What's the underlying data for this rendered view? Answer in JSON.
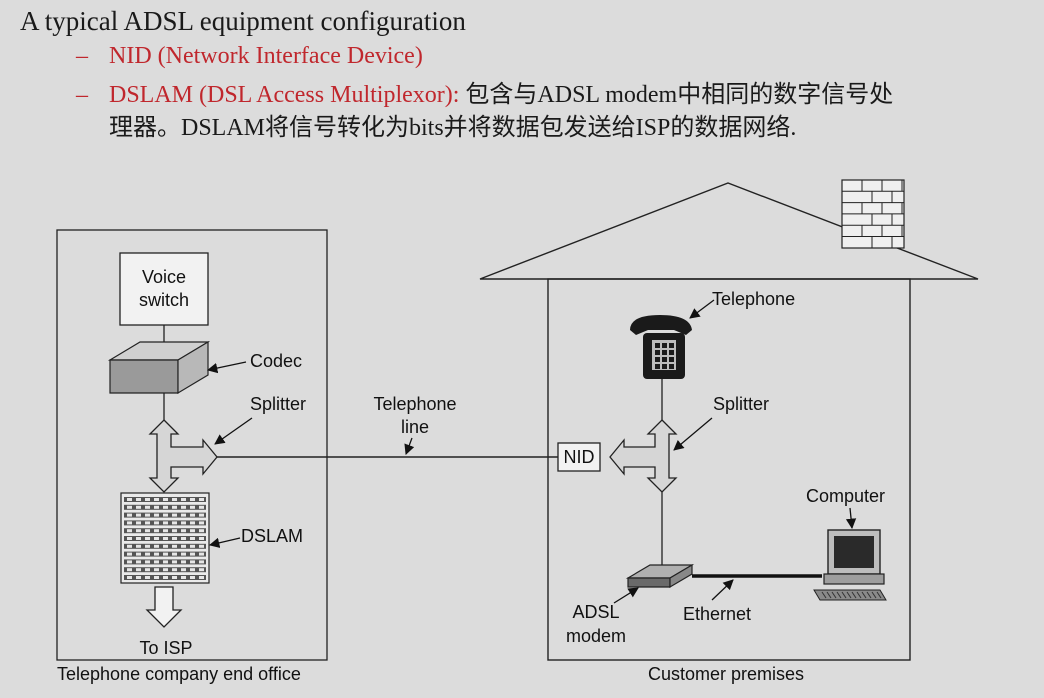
{
  "heading": "A typical ADSL equipment configuration",
  "bullets": [
    {
      "dash": "–",
      "red": "NID (Network Interface Device)",
      "black": ""
    },
    {
      "dash": "–",
      "red": "DSLAM (DSL Access Multiplexor):",
      "black": " 包含与ADSL modem中相同的数字信号处",
      "continuation": "理器。DSLAM将信号转化为bits并将数据包发送给ISP的数据网络."
    }
  ],
  "diagram": {
    "voice_switch": [
      "Voice",
      "switch"
    ],
    "codec": "Codec",
    "splitter_left": "Splitter",
    "telephone_line": [
      "Telephone",
      "line"
    ],
    "dslam": "DSLAM",
    "to_isp": "To ISP",
    "office_caption": "Telephone company end office",
    "telephone": "Telephone",
    "splitter_right": "Splitter",
    "nid": "NID",
    "computer": "Computer",
    "adsl_modem": [
      "ADSL",
      "modem"
    ],
    "ethernet": "Ethernet",
    "premises_caption": "Customer premises"
  },
  "colors": {
    "accent": "#c0272d",
    "background": "#dcdcdc"
  }
}
